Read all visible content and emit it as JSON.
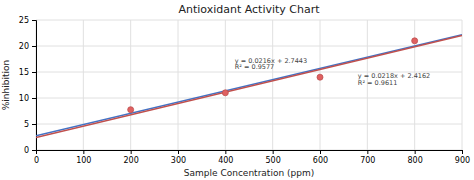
{
  "chart_data": {
    "type": "scatter",
    "title": "Antioxidant Activity Chart",
    "xlabel": "Sample Concentration (ppm)",
    "ylabel": "%inhibition",
    "xlim": [
      0,
      900
    ],
    "ylim": [
      0,
      25
    ],
    "xticks": [
      0,
      100,
      200,
      300,
      400,
      500,
      600,
      700,
      800,
      900
    ],
    "yticks": [
      0,
      5,
      10,
      15,
      20,
      25
    ],
    "grid": true,
    "series": [
      {
        "type": "line",
        "color": "#4472C4",
        "x": [
          0,
          900
        ],
        "values": [
          2.7443,
          22.1843
        ]
      },
      {
        "type": "line",
        "color": "#C0504D",
        "x": [
          0,
          900
        ],
        "values": [
          2.4162,
          22.0362
        ]
      },
      {
        "type": "scatter",
        "color": "#E06060",
        "x": [
          200,
          400,
          600,
          800
        ],
        "values": [
          7.75,
          11.0,
          14.0,
          21.0
        ]
      }
    ],
    "annotations": [
      {
        "text": "y = 0.0216x + 2.7443",
        "x": 420,
        "y": 16.5
      },
      {
        "text": "R² = 0.9577",
        "x": 420,
        "y": 15.2
      },
      {
        "text": "y = 0.0218x + 2.4162",
        "x": 680,
        "y": 13.5
      },
      {
        "text": "R² = 0.9611",
        "x": 680,
        "y": 12.2
      }
    ]
  }
}
